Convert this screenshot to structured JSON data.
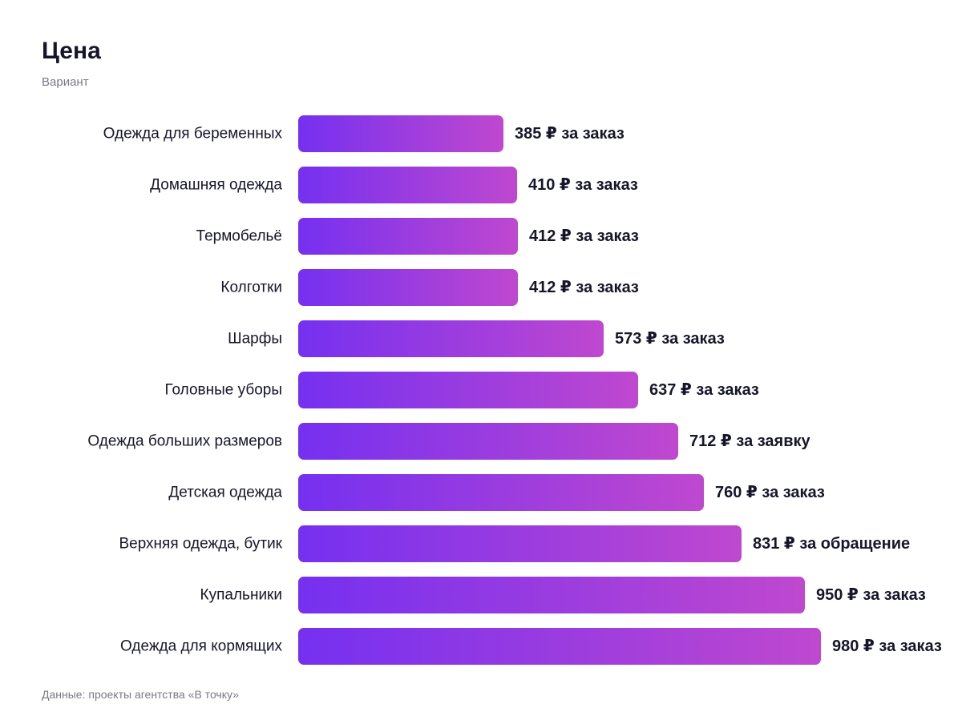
{
  "chart_data": {
    "type": "bar",
    "orientation": "horizontal",
    "title": "Цена",
    "subtitle": "Вариант",
    "source": "Данные: проекты агентства «В точку»",
    "currency": "₽",
    "categories": [
      "Одежда для беременных",
      "Домашняя одежда",
      "Термобельё",
      "Колготки",
      "Шарфы",
      "Головные уборы",
      "Одежда больших размеров",
      "Детская одежда",
      "Верхняя одежда, бутик",
      "Купальники",
      "Одежда для кормящих"
    ],
    "values": [
      385,
      410,
      412,
      412,
      573,
      637,
      712,
      760,
      831,
      950,
      980
    ],
    "units": [
      "за заказ",
      "за заказ",
      "за заказ",
      "за заказ",
      "за заказ",
      "за заказ",
      "за заявку",
      "за заказ",
      "за обращение",
      "за заказ",
      "за заказ"
    ],
    "xlim": [
      0,
      980
    ],
    "grid": false,
    "legend": "none",
    "colors": {
      "bar_start": "#7530f0",
      "bar_end": "#bf48cf",
      "text": "#16162a",
      "muted": "#7a7a88"
    }
  }
}
